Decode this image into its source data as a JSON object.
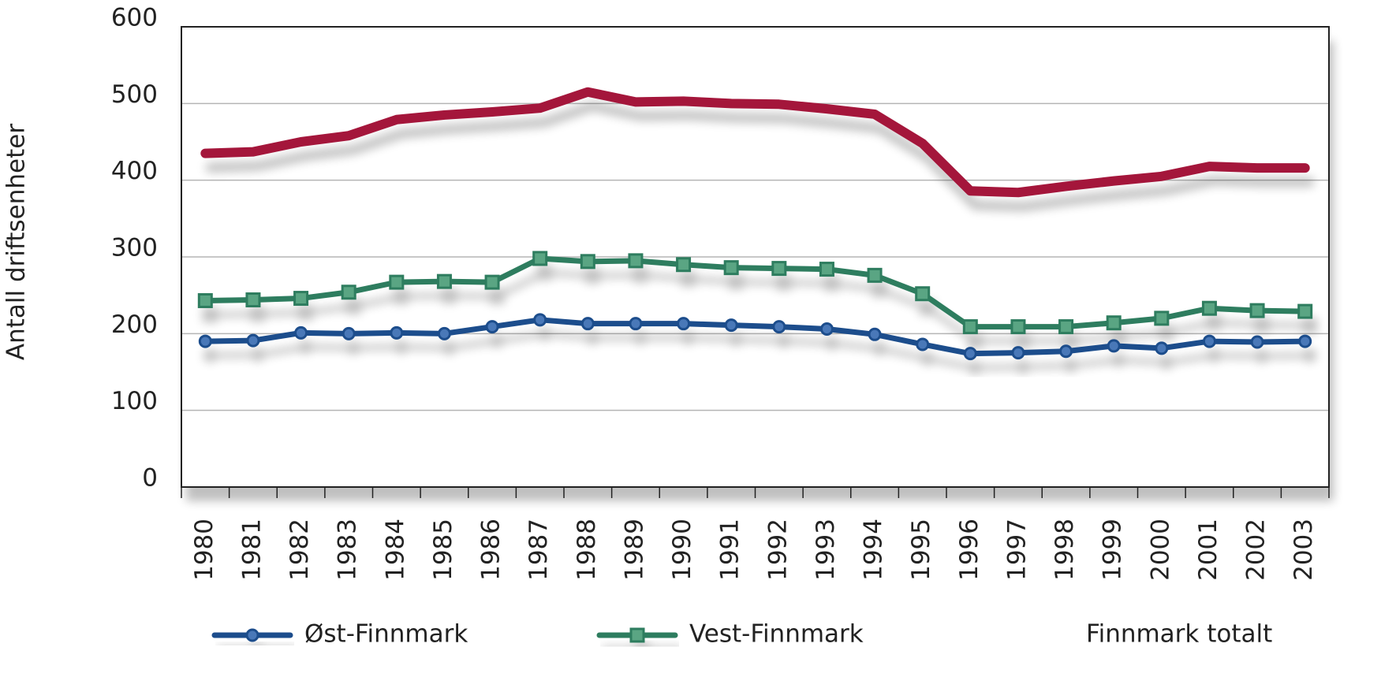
{
  "chart_data": {
    "type": "line",
    "y_label": "Antall driftsenheter",
    "categories": [
      "1980",
      "1981",
      "1982",
      "1983",
      "1984",
      "1985",
      "1986",
      "1987",
      "1988",
      "1989",
      "1990",
      "1991",
      "1992",
      "1993",
      "1994",
      "1995",
      "1996",
      "1997",
      "1998",
      "1999",
      "2000",
      "2001",
      "2002",
      "2003"
    ],
    "series": [
      {
        "name": "Øst-Finnmark",
        "color": "#1f4e8c",
        "marker": "circle",
        "values": [
          190,
          191,
          201,
          200,
          201,
          200,
          209,
          218,
          213,
          213,
          213,
          211,
          209,
          206,
          199,
          186,
          174,
          175,
          177,
          184,
          181,
          190,
          189,
          190
        ]
      },
      {
        "name": "Vest-Finnmark",
        "color": "#2e7d5e",
        "marker": "square",
        "values": [
          243,
          244,
          246,
          254,
          267,
          268,
          267,
          298,
          294,
          295,
          290,
          286,
          285,
          284,
          276,
          252,
          209,
          209,
          209,
          214,
          220,
          233,
          230,
          229
        ]
      },
      {
        "name": "Finnmark totalt",
        "color": "#a4153a",
        "values": [
          435,
          437,
          450,
          458,
          479,
          485,
          489,
          494,
          515,
          502,
          503,
          500,
          499,
          493,
          486,
          448,
          386,
          384,
          392,
          399,
          405,
          418,
          416,
          416
        ]
      }
    ],
    "ylim": [
      0,
      600
    ],
    "yticks": [
      0,
      100,
      200,
      300,
      400,
      500,
      600
    ],
    "grid": true
  }
}
